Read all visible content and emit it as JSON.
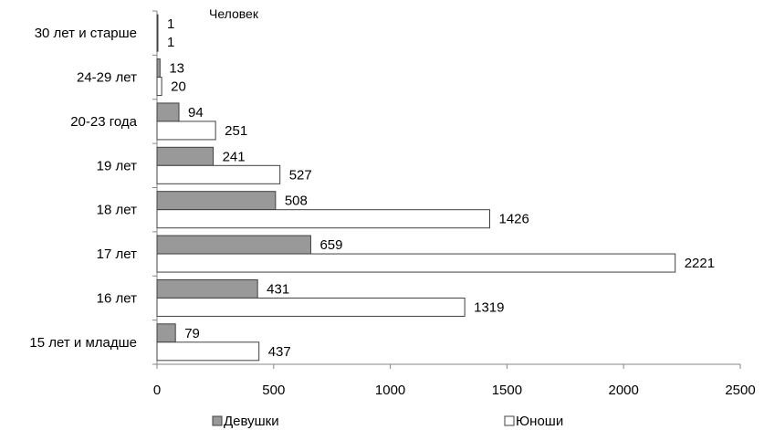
{
  "chart_data": {
    "type": "bar",
    "orientation": "horizontal",
    "unit_label": "Человек",
    "categories": [
      "30 лет и старше",
      "24-29 лет",
      "20-23 года",
      "19 лет",
      "18 лет",
      "17 лет",
      "16 лет",
      "15 лет и младше"
    ],
    "series": [
      {
        "name": "Девушки",
        "color": "#999999",
        "values": [
          1,
          13,
          94,
          241,
          508,
          659,
          431,
          79
        ]
      },
      {
        "name": "Юноши",
        "color": "#ffffff",
        "values": [
          1,
          20,
          251,
          527,
          1426,
          2221,
          1319,
          437
        ]
      }
    ],
    "xlim": [
      0,
      2500
    ],
    "xticks": [
      0,
      500,
      1000,
      1500,
      2000,
      2500
    ],
    "grid": false,
    "legend_position": "bottom"
  }
}
